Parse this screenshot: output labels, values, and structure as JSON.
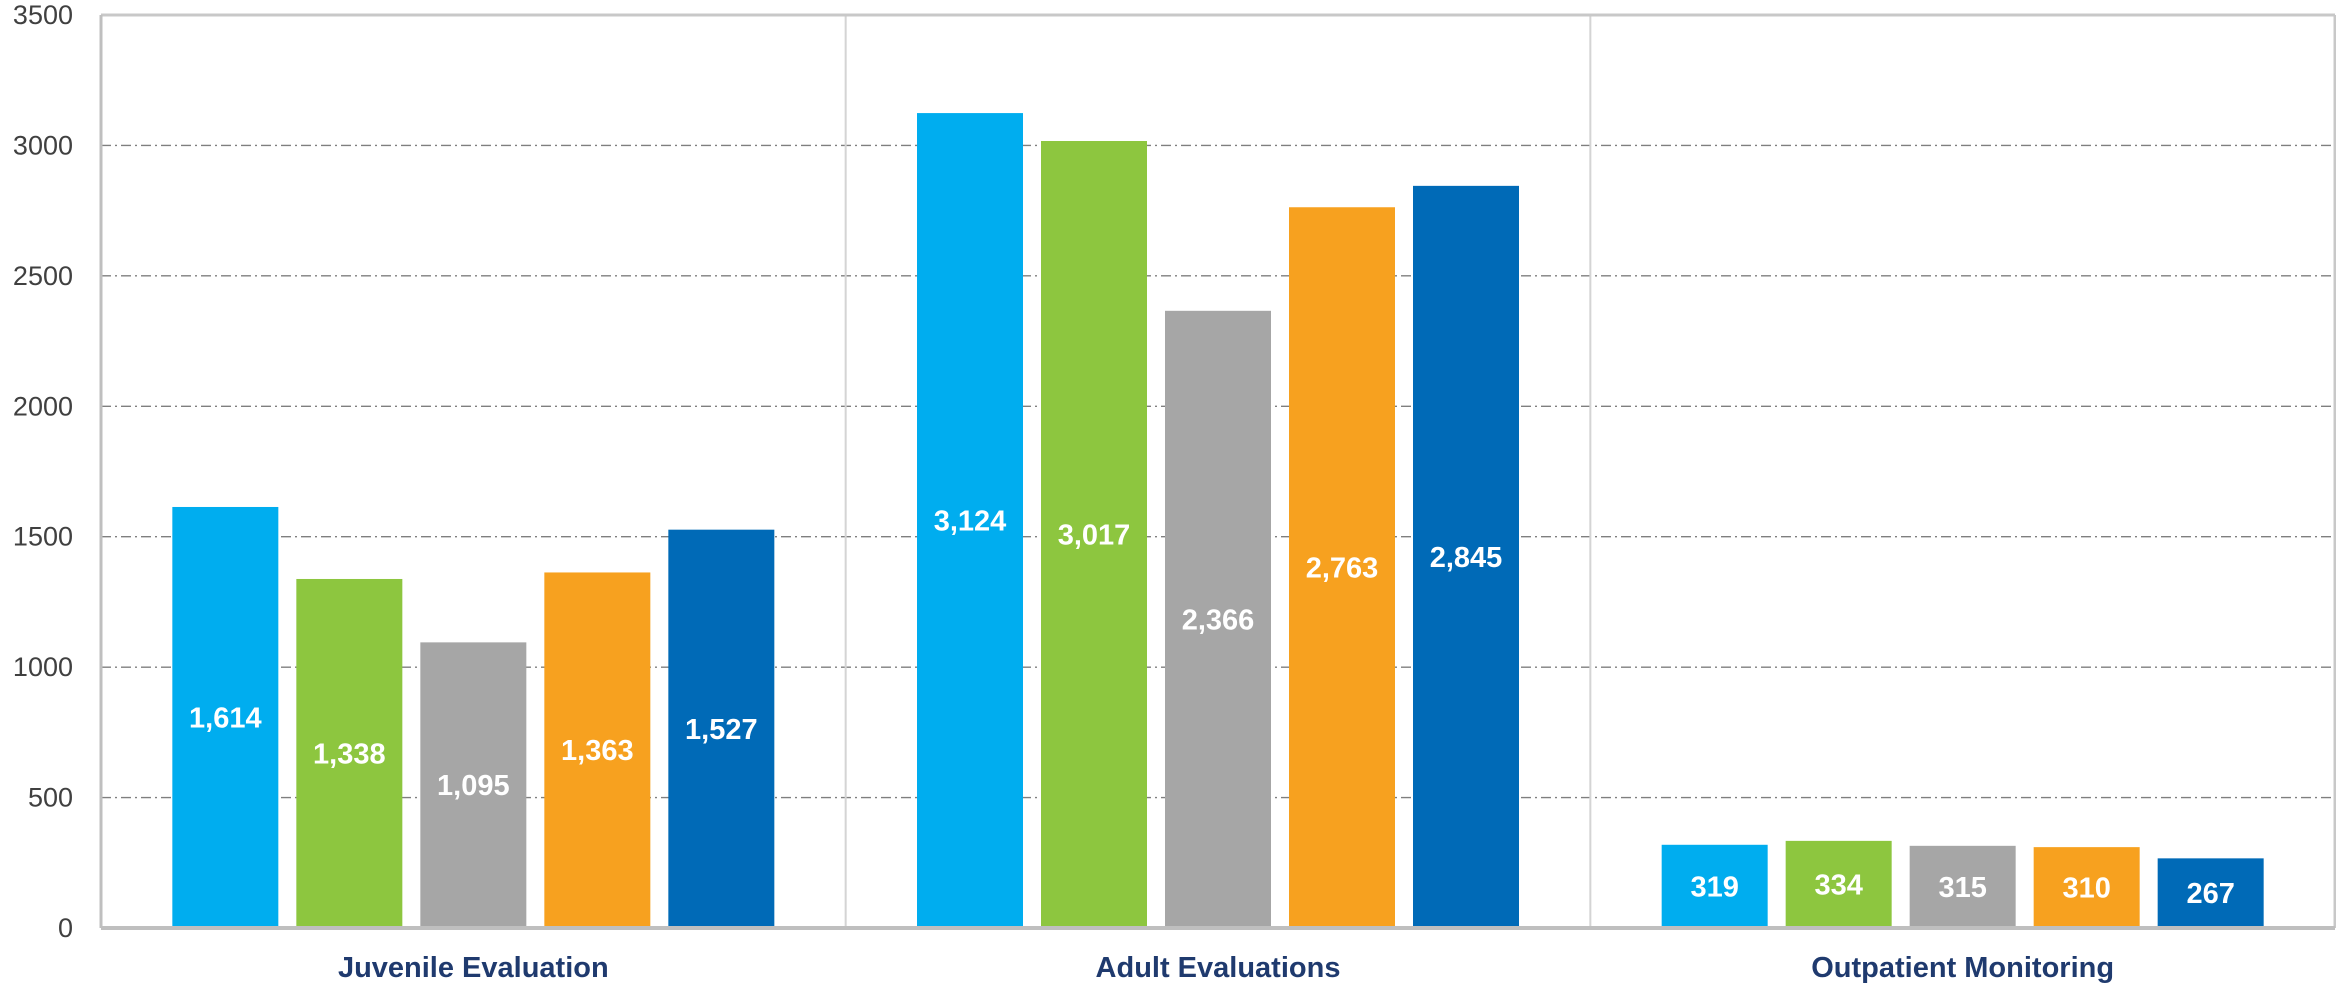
{
  "chart_data": {
    "type": "bar",
    "title": "",
    "xlabel": "",
    "ylabel": "",
    "ylim": [
      0,
      3500
    ],
    "yticks": [
      0,
      500,
      1000,
      1500,
      2000,
      2500,
      3000,
      3500
    ],
    "ytick_labels": [
      "0",
      "500",
      "1000",
      "1500",
      "2000",
      "2500",
      "3000",
      "3500"
    ],
    "grid": "horizontal dash-dot",
    "legend": "none",
    "categories": [
      "Juvenile Evaluation",
      "Adult Evaluations",
      "Outpatient Monitoring"
    ],
    "series": [
      {
        "color": "#00adef",
        "values": [
          1614,
          3124,
          319
        ],
        "labels": [
          "1,614",
          "3,124",
          "319"
        ]
      },
      {
        "color": "#8dc63f",
        "values": [
          1338,
          3017,
          334
        ],
        "labels": [
          "1,338",
          "3,017",
          "334"
        ]
      },
      {
        "color": "#a6a6a6",
        "values": [
          1095,
          2366,
          315
        ],
        "labels": [
          "1,095",
          "2,366",
          "315"
        ]
      },
      {
        "color": "#f7a11f",
        "values": [
          1363,
          2763,
          310
        ],
        "labels": [
          "1,363",
          "2,763",
          "310"
        ]
      },
      {
        "color": "#006ab7",
        "values": [
          1527,
          2845,
          267
        ],
        "labels": [
          "1,527",
          "2,845",
          "267"
        ]
      }
    ]
  }
}
